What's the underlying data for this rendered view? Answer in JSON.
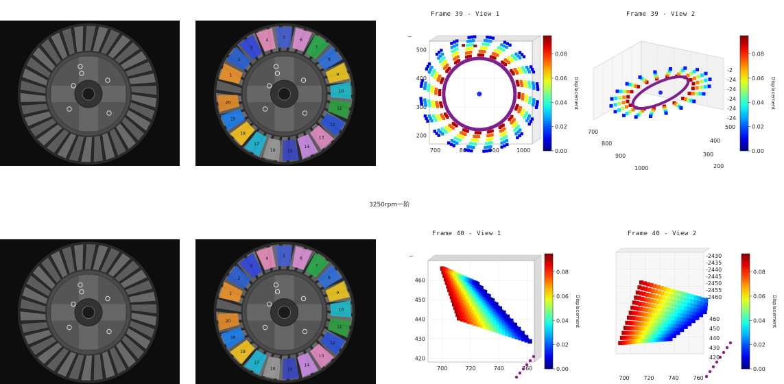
{
  "caption": "3250rpm一阶",
  "colorbar": {
    "label": "Displacement",
    "ticks": [
      "0.00",
      "0.02",
      "0.04",
      "0.06",
      "0.08"
    ],
    "range": [
      0,
      0.095
    ]
  },
  "blade_labels": [
    "1",
    "2",
    "3",
    "4",
    "5",
    "6",
    "7",
    "8",
    "9",
    "10",
    "11",
    "12",
    "13",
    "14",
    "15",
    "16",
    "17",
    "18",
    "19",
    "20"
  ],
  "chart_data": [
    {
      "type": "scatter",
      "title": "Frame 39 - View 1",
      "x_ticks": [
        "700",
        "800",
        "900",
        "1000"
      ],
      "y_ticks": [
        "200",
        "300",
        "400",
        "500"
      ],
      "xlim": [
        680,
        1030
      ],
      "ylim": [
        170,
        530
      ],
      "center": {
        "x": 850,
        "y": 345
      },
      "ring_radius": 88
    },
    {
      "type": "scatter",
      "title": "Frame 39 - View 2",
      "x_ticks": [
        "700",
        "800",
        "900",
        "1000"
      ],
      "y_ticks": [
        "200",
        "300",
        "400",
        "500"
      ],
      "z_ticks": [
        "-2",
        "-24",
        "-24",
        "-24",
        "-24",
        "-24"
      ]
    },
    {
      "type": "scatter",
      "title": "Frame 40 - View 1",
      "x_ticks": [
        "700",
        "720",
        "740",
        "760"
      ],
      "y_ticks": [
        "420",
        "430",
        "440",
        "450",
        "460"
      ],
      "xlim": [
        690,
        765
      ],
      "ylim": [
        418,
        470
      ]
    },
    {
      "type": "scatter",
      "title": "Frame 40 - View 2",
      "x_ticks": [
        "700",
        "720",
        "740",
        "760"
      ],
      "y_ticks": [
        "420",
        "430",
        "440",
        "450",
        "460"
      ],
      "z_ticks": [
        "-2430",
        "-2435",
        "-2440",
        "-2445",
        "-2450",
        "-2455",
        "-2460"
      ]
    }
  ]
}
